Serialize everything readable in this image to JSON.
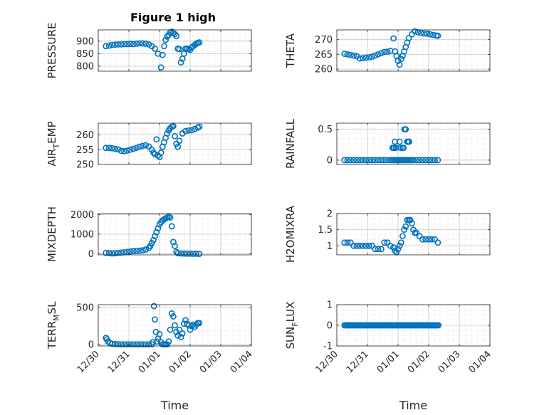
{
  "figure_title": "Figure 1 high",
  "colors": {
    "marker": "#0072bd",
    "axis": "#262626",
    "grid": "#d9d9d9",
    "background": "#ffffff"
  },
  "chart_data": [
    {
      "type": "scatter",
      "title": "Figure 1 high",
      "ylabel": "PRESSURE",
      "ylabel_parts": [
        "PRESSURE"
      ],
      "xlabel": "",
      "ylim": [
        780,
        945
      ],
      "yticks": [
        800,
        850,
        900
      ],
      "xticks": [
        "12/30",
        "12/31",
        "01/01",
        "01/02",
        "01/03",
        "01/04"
      ],
      "show_xticklabels": false,
      "x": [
        0.25,
        0.35,
        0.45,
        0.55,
        0.65,
        0.75,
        0.85,
        0.95,
        1.05,
        1.15,
        1.25,
        1.35,
        1.45,
        1.55,
        1.65,
        1.75,
        1.85,
        1.95,
        2.05,
        2.1,
        2.15,
        2.2,
        2.25,
        2.3,
        2.35,
        2.4,
        2.45,
        2.5,
        2.55,
        2.6,
        2.65,
        2.7,
        2.75,
        2.8,
        2.85,
        2.9,
        2.95,
        3.0,
        3.05,
        3.1,
        3.15,
        3.2,
        3.25,
        3.3
      ],
      "y": [
        880,
        882,
        885,
        886,
        887,
        887,
        888,
        888,
        889,
        888,
        890,
        891,
        891,
        890,
        887,
        880,
        870,
        850,
        795,
        845,
        880,
        905,
        918,
        925,
        935,
        938,
        933,
        928,
        920,
        870,
        868,
        815,
        830,
        850,
        870,
        870,
        868,
        865,
        875,
        880,
        885,
        890,
        893,
        895
      ],
      "marker": "circle",
      "grid": true,
      "minor_grid": true
    },
    {
      "type": "scatter",
      "title": "",
      "ylabel": "THETA",
      "ylabel_parts": [
        "THETA"
      ],
      "xlabel": "",
      "ylim": [
        259.3,
        273.3
      ],
      "yticks": [
        260,
        265,
        270
      ],
      "xticks": [
        "12/30",
        "12/31",
        "01/01",
        "01/02",
        "01/03",
        "01/04"
      ],
      "show_xticklabels": false,
      "x": [
        0.25,
        0.35,
        0.45,
        0.55,
        0.65,
        0.75,
        0.85,
        0.95,
        1.05,
        1.15,
        1.25,
        1.35,
        1.45,
        1.55,
        1.65,
        1.75,
        1.85,
        1.9,
        1.95,
        2.0,
        2.05,
        2.1,
        2.15,
        2.2,
        2.25,
        2.3,
        2.35,
        2.45,
        2.55,
        2.65,
        2.75,
        2.85,
        2.95,
        3.05,
        3.15,
        3.25,
        3.3
      ],
      "y": [
        265.2,
        265,
        264.8,
        264.6,
        264.4,
        263.6,
        263.7,
        263.9,
        264,
        264.2,
        264.6,
        265,
        265.4,
        265.8,
        265.9,
        266.2,
        270.4,
        266,
        264.5,
        262.8,
        261.5,
        263.5,
        264.5,
        266,
        267.5,
        269,
        270.5,
        271.8,
        272.8,
        272.5,
        272.3,
        272.1,
        272,
        271.8,
        271.6,
        271.4,
        271.3
      ],
      "marker": "circle",
      "grid": true,
      "minor_grid": true
    },
    {
      "type": "scatter",
      "title": "",
      "ylabel": "AIR_TEMP",
      "ylabel_parts": [
        "AIR",
        "T",
        "EMP"
      ],
      "xlabel": "",
      "ylim": [
        250,
        264
      ],
      "yticks": [
        250,
        255,
        260
      ],
      "xticks": [
        "12/30",
        "12/31",
        "01/01",
        "01/02",
        "01/03",
        "01/04"
      ],
      "show_xticklabels": false,
      "x": [
        0.25,
        0.35,
        0.45,
        0.55,
        0.65,
        0.75,
        0.85,
        0.95,
        1.05,
        1.15,
        1.25,
        1.35,
        1.45,
        1.55,
        1.65,
        1.75,
        1.8,
        1.85,
        1.9,
        1.95,
        2.0,
        2.05,
        2.1,
        2.15,
        2.2,
        2.25,
        2.3,
        2.35,
        2.4,
        2.45,
        2.5,
        2.55,
        2.6,
        2.65,
        2.75,
        2.85,
        2.95,
        3.05,
        3.15,
        3.25,
        3.3
      ],
      "y": [
        255.6,
        255.6,
        255.5,
        255.3,
        255.1,
        254.6,
        254.5,
        254.7,
        255,
        255.3,
        255.6,
        256,
        256.3,
        256.5,
        256.1,
        255,
        254,
        253.5,
        258.5,
        253,
        252.5,
        254,
        256,
        257.5,
        259,
        260.5,
        261.5,
        262.3,
        262.8,
        263,
        259.6,
        257,
        256,
        258,
        260.5,
        261.3,
        261.5,
        261.6,
        262,
        262.5,
        262.8
      ],
      "marker": "circle",
      "grid": true,
      "minor_grid": true
    },
    {
      "type": "scatter",
      "title": "",
      "ylabel": "RAINFALL",
      "ylabel_parts": [
        "RAINFALL"
      ],
      "xlabel": "",
      "ylim": [
        -0.07,
        0.6
      ],
      "yticks": [
        0,
        0.5
      ],
      "ytick_labels": [
        "0",
        "0.5"
      ],
      "xticks": [
        "12/30",
        "12/31",
        "01/01",
        "01/02",
        "01/03",
        "01/04"
      ],
      "show_xticklabels": false,
      "x": [
        0.25,
        0.35,
        0.45,
        0.55,
        0.65,
        0.75,
        0.85,
        0.95,
        1.05,
        1.15,
        1.25,
        1.35,
        1.45,
        1.55,
        1.65,
        1.75,
        1.8,
        1.85,
        1.9,
        1.95,
        2.0,
        2.05,
        2.1,
        2.15,
        2.2,
        2.25,
        2.3,
        2.35,
        2.4,
        2.45,
        2.5,
        2.6,
        2.7,
        2.8,
        2.9,
        3.0,
        3.1,
        3.2,
        3.3,
        1.82,
        1.84,
        1.87,
        1.9,
        1.93,
        2.05,
        2.08,
        2.15,
        2.18,
        2.21,
        2.25,
        2.3,
        2.33,
        2.36
      ],
      "y": [
        0,
        0,
        0,
        0,
        0,
        0,
        0,
        0,
        0,
        0,
        0,
        0,
        0,
        0,
        0,
        0,
        0,
        0,
        0,
        0,
        0,
        0,
        0,
        0,
        0,
        0,
        0,
        0,
        0,
        0,
        0,
        0,
        0,
        0,
        0,
        0,
        0,
        0,
        0,
        0.2,
        0.2,
        0.2,
        0.3,
        0.2,
        0.3,
        0.2,
        0.2,
        0.2,
        0.5,
        0.5,
        0.3,
        0.3,
        0.3
      ],
      "marker": "circle",
      "grid": true,
      "minor_grid": true
    },
    {
      "type": "scatter",
      "title": "",
      "ylabel": "MIXDEPTH",
      "ylabel_parts": [
        "MIXDEPTH"
      ],
      "xlabel": "",
      "ylim": [
        -50,
        2050
      ],
      "yticks": [
        0,
        1000,
        2000
      ],
      "xticks": [
        "12/30",
        "12/31",
        "01/01",
        "01/02",
        "01/03",
        "01/04"
      ],
      "show_xticklabels": false,
      "x": [
        0.25,
        0.35,
        0.45,
        0.55,
        0.65,
        0.75,
        0.85,
        0.95,
        1.05,
        1.15,
        1.25,
        1.35,
        1.45,
        1.55,
        1.65,
        1.7,
        1.75,
        1.8,
        1.85,
        1.9,
        1.95,
        2.0,
        2.05,
        2.1,
        2.15,
        2.2,
        2.25,
        2.3,
        2.35,
        2.4,
        2.45,
        2.5,
        2.55,
        2.6,
        2.7,
        2.8,
        2.9,
        3.0,
        3.1,
        3.2,
        3.3
      ],
      "y": [
        50,
        40,
        20,
        30,
        50,
        60,
        80,
        100,
        120,
        140,
        150,
        160,
        180,
        220,
        300,
        400,
        550,
        700,
        900,
        1100,
        1300,
        1500,
        1600,
        1700,
        1750,
        1800,
        1850,
        1900,
        1850,
        1400,
        600,
        400,
        100,
        30,
        20,
        15,
        10,
        10,
        5,
        5,
        0
      ],
      "marker": "circle",
      "grid": true,
      "minor_grid": true
    },
    {
      "type": "scatter",
      "title": "",
      "ylabel": "H2OMIXRA",
      "ylabel_parts": [
        "H2OMIXRA"
      ],
      "xlabel": "",
      "ylim": [
        0.72,
        2.0
      ],
      "yticks": [
        1,
        1.5,
        2
      ],
      "ytick_labels": [
        "1",
        "1.5",
        "2"
      ],
      "xticks": [
        "12/30",
        "12/31",
        "01/01",
        "01/02",
        "01/03",
        "01/04"
      ],
      "show_xticklabels": false,
      "x": [
        0.25,
        0.35,
        0.45,
        0.55,
        0.65,
        0.75,
        0.85,
        0.95,
        1.05,
        1.15,
        1.25,
        1.35,
        1.45,
        1.55,
        1.65,
        1.75,
        1.85,
        1.9,
        1.95,
        2.0,
        2.05,
        2.1,
        2.15,
        2.2,
        2.25,
        2.3,
        2.35,
        2.4,
        2.45,
        2.5,
        2.55,
        2.6,
        2.7,
        2.8,
        2.9,
        3.0,
        3.1,
        3.2,
        3.3
      ],
      "y": [
        1.1,
        1.1,
        1.1,
        1.0,
        1.0,
        1.0,
        1.0,
        1.0,
        1.0,
        1.0,
        0.9,
        0.9,
        0.9,
        1.1,
        1.1,
        1.0,
        0.95,
        0.85,
        0.8,
        0.9,
        1.0,
        1.1,
        1.3,
        1.5,
        1.6,
        1.8,
        1.8,
        1.8,
        1.7,
        1.5,
        1.4,
        1.4,
        1.3,
        1.2,
        1.2,
        1.2,
        1.2,
        1.2,
        1.1
      ],
      "marker": "circle",
      "grid": true,
      "minor_grid": true
    },
    {
      "type": "scatter",
      "title": "",
      "ylabel": "TERR_MSL",
      "ylabel_parts": [
        "TERR",
        "M",
        "SL"
      ],
      "xlabel": "Time",
      "ylim": [
        -20,
        540
      ],
      "yticks": [
        0,
        500
      ],
      "xticks": [
        "12/30",
        "12/31",
        "01/01",
        "01/02",
        "01/03",
        "01/04"
      ],
      "show_xticklabels": true,
      "x": [
        0.25,
        0.28,
        0.32,
        0.38,
        0.45,
        0.55,
        0.65,
        0.75,
        0.85,
        0.95,
        1.05,
        1.15,
        1.25,
        1.35,
        1.45,
        1.55,
        1.65,
        1.75,
        1.78,
        1.82,
        1.85,
        1.88,
        1.92,
        1.95,
        2.0,
        2.05,
        2.1,
        2.15,
        2.2,
        2.25,
        2.3,
        2.35,
        2.4,
        2.45,
        2.5,
        2.55,
        2.6,
        2.65,
        2.7,
        2.75,
        2.8,
        2.85,
        2.9,
        2.95,
        3.0,
        3.05,
        3.1,
        3.15,
        3.2,
        3.25,
        3.3
      ],
      "y": [
        90,
        70,
        40,
        20,
        10,
        5,
        3,
        2,
        2,
        2,
        2,
        2,
        2,
        2,
        2,
        2,
        2,
        2,
        30,
        520,
        340,
        170,
        40,
        80,
        140,
        30,
        2,
        2,
        2,
        2,
        40,
        200,
        420,
        380,
        260,
        170,
        120,
        200,
        100,
        150,
        280,
        330,
        280,
        260,
        200,
        250,
        270,
        240,
        270,
        290,
        290
      ],
      "marker": "circle",
      "grid": true,
      "minor_grid": true
    },
    {
      "type": "scatter",
      "title": "",
      "ylabel": "SUN_FLUX",
      "ylabel_parts": [
        "SUN",
        "F",
        "LUX"
      ],
      "xlabel": "Time",
      "ylim": [
        -1,
        1
      ],
      "yticks": [
        -1,
        0,
        1
      ],
      "xticks": [
        "12/30",
        "12/31",
        "01/01",
        "01/02",
        "01/03",
        "01/04"
      ],
      "show_xticklabels": true,
      "x_range": [
        0.25,
        3.32
      ],
      "y_const": 0,
      "n_points": 75,
      "marker": "circle",
      "grid": true,
      "minor_grid": true
    }
  ]
}
